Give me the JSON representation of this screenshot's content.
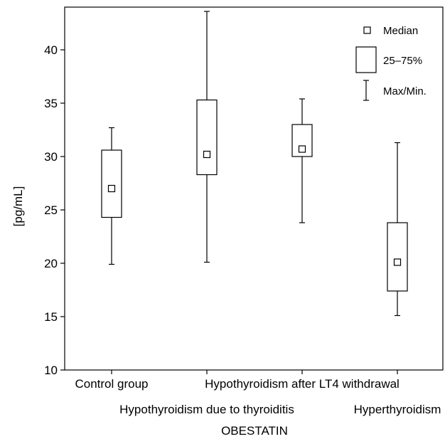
{
  "chart_data": {
    "type": "boxplot",
    "title": "",
    "xlabel": "OBESTATIN",
    "ylabel": "[pg/mL]",
    "ylim": [
      10,
      44
    ],
    "yticks": [
      10,
      15,
      20,
      25,
      30,
      35,
      40
    ],
    "grid": false,
    "legend_position": "top-right",
    "legend": {
      "median": "Median",
      "box": "25–75%",
      "whisker": "Max/Min."
    },
    "categories": [
      "Control group",
      "Hypothyroidism due to thyroiditis",
      "Hypothyroidism after LT4 withdrawal",
      "Hyperthyroidism"
    ],
    "series": [
      {
        "category": "Control group",
        "min": 19.9,
        "q1": 24.3,
        "median": 27.0,
        "q3": 30.6,
        "max": 32.7
      },
      {
        "category": "Hypothyroidism due to thyroiditis",
        "min": 20.1,
        "q1": 28.3,
        "median": 30.2,
        "q3": 35.3,
        "max": 43.6
      },
      {
        "category": "Hypothyroidism after LT4 withdrawal",
        "min": 23.8,
        "q1": 30.0,
        "median": 30.7,
        "q3": 33.0,
        "max": 35.4
      },
      {
        "category": "Hyperthyroidism",
        "min": 15.1,
        "q1": 17.4,
        "median": 20.1,
        "q3": 23.8,
        "max": 31.3
      }
    ]
  }
}
